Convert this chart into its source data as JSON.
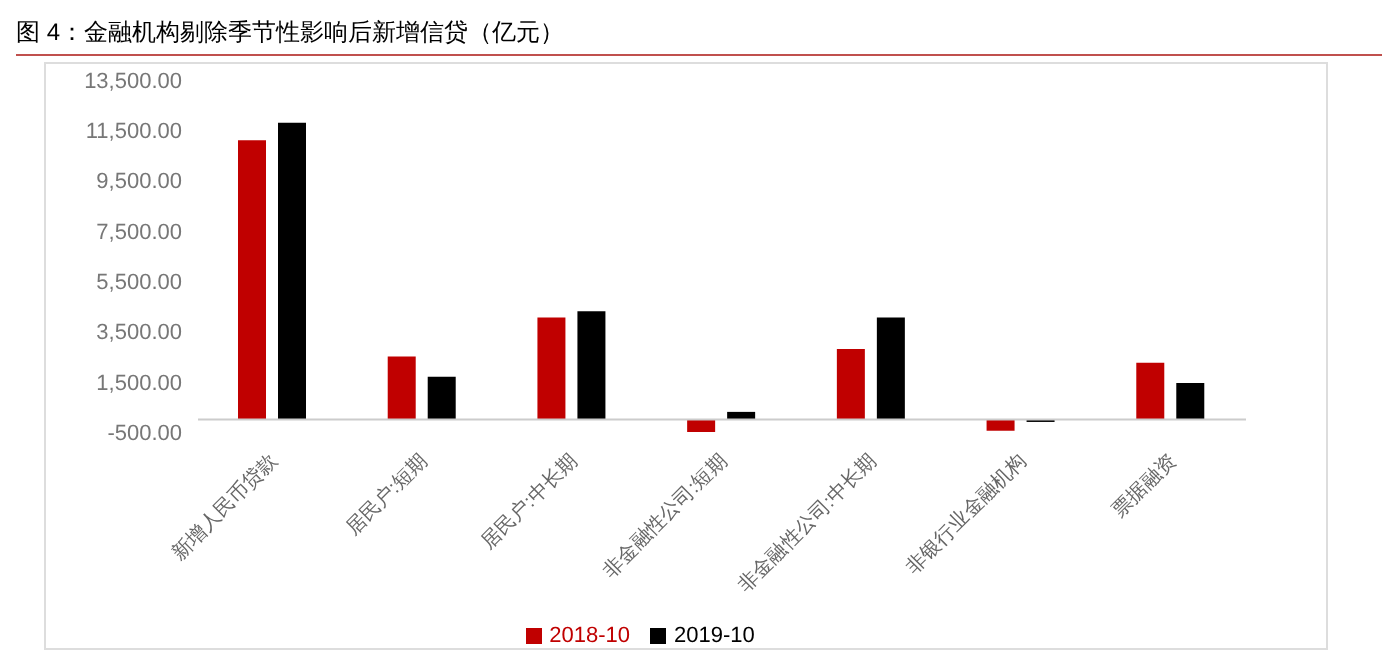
{
  "chart_data": {
    "type": "bar",
    "title": "图 4：金融机构剔除季节性影响后新增信贷（亿元）",
    "categories": [
      "新增人民币贷款",
      "居民户:短期",
      "居民户:中长期",
      "非金融性公司:短期",
      "非金融性公司:中长期",
      "非银行业金融机构",
      "票据融资"
    ],
    "series": [
      {
        "name": "2018-10",
        "color": "#c00000",
        "values": [
          11100,
          2500,
          4050,
          -500,
          2800,
          -450,
          2250
        ]
      },
      {
        "name": "2019-10",
        "color": "#000000",
        "values": [
          11800,
          1700,
          4300,
          300,
          4050,
          -100,
          1450
        ]
      }
    ],
    "ylim": [
      -500,
      13500
    ],
    "yticks": [
      {
        "value": -500,
        "label": "-500.00"
      },
      {
        "value": 1500,
        "label": "1,500.00"
      },
      {
        "value": 3500,
        "label": "3,500.00"
      },
      {
        "value": 5500,
        "label": "5,500.00"
      },
      {
        "value": 7500,
        "label": "7,500.00"
      },
      {
        "value": 9500,
        "label": "9,500.00"
      },
      {
        "value": 11500,
        "label": "11,500.00"
      },
      {
        "value": 13500,
        "label": "13,500.00"
      }
    ],
    "grid": false,
    "legend": "bottom"
  }
}
